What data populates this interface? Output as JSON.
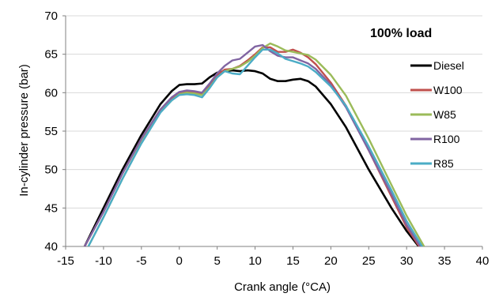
{
  "chart_data": {
    "type": "line",
    "title": "",
    "annotation": "100% load",
    "xlabel": "Crank angle (°CA)",
    "ylabel": "In-cylinder pressure (bar)",
    "xlim": [
      -15,
      40
    ],
    "ylim": [
      40,
      70
    ],
    "x_ticks": [
      -15,
      -10,
      -5,
      0,
      5,
      10,
      15,
      20,
      25,
      30,
      35,
      40
    ],
    "y_ticks": [
      40,
      45,
      50,
      55,
      60,
      65,
      70
    ],
    "x_tick_labels": [
      "-15",
      "-10",
      "-5",
      "0",
      "5",
      "10",
      "15",
      "20",
      "25",
      "30",
      "35",
      "40"
    ],
    "y_tick_labels": [
      "40",
      "45",
      "50",
      "55",
      "60",
      "65",
      "70"
    ],
    "grid": "horizontal",
    "legend_position": "right",
    "series": [
      {
        "name": "Diesel",
        "color": "#000000",
        "x": [
          -12.5,
          -10,
          -7.5,
          -5,
          -2.5,
          -1,
          0,
          1,
          2,
          3,
          4,
          5,
          6,
          7,
          8,
          9,
          10,
          11,
          12,
          13,
          14,
          15,
          16,
          17,
          18,
          20,
          22,
          25,
          28,
          30,
          32
        ],
        "y": [
          40,
          45,
          50,
          54.5,
          58.5,
          60.2,
          61,
          61.1,
          61.1,
          61.2,
          62,
          62.6,
          62.8,
          62.9,
          62.8,
          62.9,
          62.8,
          62.5,
          61.8,
          61.5,
          61.5,
          61.7,
          61.8,
          61.5,
          60.8,
          58.5,
          55.5,
          50,
          45,
          42,
          39.5
        ]
      },
      {
        "name": "W100",
        "color": "#c0504d",
        "x": [
          -12.5,
          -10,
          -7.5,
          -5,
          -2.5,
          -1,
          0,
          1,
          2,
          3,
          4,
          5,
          6,
          7,
          8,
          9,
          10,
          11,
          12,
          13,
          14,
          15,
          16,
          17,
          18,
          20,
          22,
          25,
          28,
          30,
          32
        ],
        "y": [
          40,
          44.5,
          49.5,
          54,
          57.8,
          59.3,
          60,
          60.2,
          60.1,
          59.9,
          61,
          62.3,
          63,
          63.1,
          63.5,
          64.2,
          65,
          65.9,
          65.9,
          65.3,
          65.3,
          65.6,
          65.2,
          64.6,
          63.7,
          61.3,
          58.3,
          52.5,
          46.5,
          42.5,
          39.5
        ]
      },
      {
        "name": "W85",
        "color": "#9bbb59",
        "x": [
          -12,
          -10,
          -7.5,
          -5,
          -2.5,
          -1,
          0,
          1,
          2,
          3,
          4,
          5,
          6,
          7,
          8,
          9,
          10,
          11,
          12,
          13,
          14,
          15,
          16,
          17,
          18,
          20,
          22,
          25,
          28,
          30,
          32.3
        ],
        "y": [
          40,
          43.8,
          48.8,
          53.5,
          57.5,
          59,
          59.8,
          60,
          59.9,
          59.7,
          60.7,
          62,
          62.8,
          63.1,
          63.4,
          64,
          64.8,
          65.8,
          66.4,
          66,
          65.5,
          65.3,
          65.1,
          64.9,
          64.3,
          62.3,
          59.6,
          54,
          48,
          44,
          40
        ]
      },
      {
        "name": "R100",
        "color": "#8064a2",
        "x": [
          -12.5,
          -10,
          -7.5,
          -5,
          -2.5,
          -1,
          0,
          1,
          2,
          3,
          4,
          5,
          6,
          7,
          8,
          9,
          10,
          11,
          12,
          13,
          14,
          15,
          16,
          17,
          18,
          20,
          22,
          25,
          28,
          30,
          32
        ],
        "y": [
          40,
          44.5,
          49.5,
          54,
          57.8,
          59.4,
          60.1,
          60.3,
          60.2,
          60,
          61.2,
          62.5,
          63.5,
          64.2,
          64.4,
          65.2,
          66,
          66.2,
          65.4,
          64.8,
          64.6,
          64.6,
          64.2,
          63.8,
          63.1,
          61,
          58.1,
          52.5,
          46.8,
          42.8,
          39.7
        ]
      },
      {
        "name": "R85",
        "color": "#4bacc6",
        "x": [
          -12,
          -10,
          -7.5,
          -5,
          -2.5,
          -1,
          0,
          1,
          2,
          3,
          4,
          5,
          6,
          7,
          8,
          9,
          10,
          11,
          12,
          13,
          14,
          15,
          16,
          17,
          18,
          20,
          22,
          25,
          28,
          30,
          32.1
        ],
        "y": [
          40,
          43.8,
          48.8,
          53.4,
          57.4,
          59,
          59.7,
          59.8,
          59.7,
          59.4,
          60.6,
          62,
          62.8,
          62.5,
          62.4,
          63.5,
          64.6,
          65.6,
          65.6,
          65.1,
          64.4,
          64.1,
          63.8,
          63.4,
          62.7,
          60.8,
          58.3,
          53,
          47.3,
          43.3,
          39.9
        ]
      }
    ]
  }
}
